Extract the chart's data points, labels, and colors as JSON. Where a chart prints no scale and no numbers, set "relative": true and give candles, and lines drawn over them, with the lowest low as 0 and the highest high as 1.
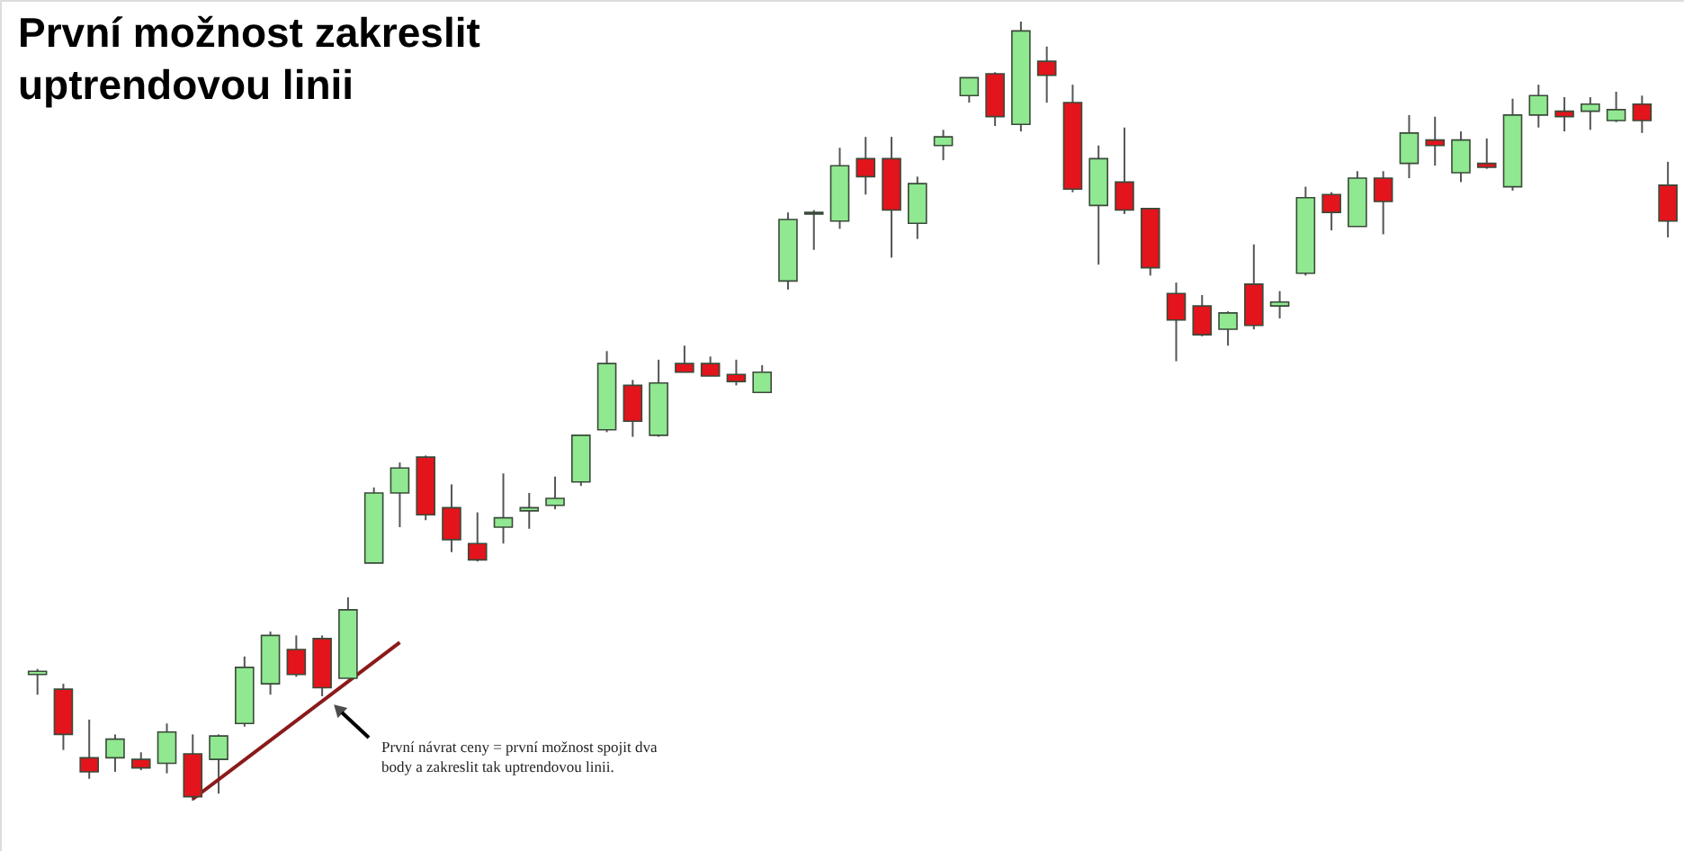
{
  "chart_data": {
    "type": "candlestick",
    "title": "První možnost zakreslit uptrendovou linii",
    "relative": true,
    "categories": [
      null,
      null,
      null,
      null,
      null,
      null,
      null,
      null,
      null,
      null,
      null,
      null,
      null,
      null,
      null,
      null,
      null,
      null,
      null,
      null,
      null,
      null,
      null,
      null,
      null,
      null,
      null,
      null,
      null,
      null,
      null,
      null,
      null,
      null,
      null,
      null,
      null,
      null,
      null,
      null,
      null,
      null,
      null,
      null,
      null,
      null,
      null,
      null,
      null,
      null,
      null,
      null,
      null,
      null,
      null,
      null,
      null,
      null,
      null,
      null,
      null,
      null,
      null,
      null
    ],
    "ohlc": [
      [
        0.162,
        0.169,
        0.136,
        0.166
      ],
      [
        0.143,
        0.15,
        0.065,
        0.085
      ],
      [
        0.055,
        0.104,
        0.028,
        0.037
      ],
      [
        0.055,
        0.085,
        0.037,
        0.079
      ],
      [
        0.053,
        0.062,
        0.039,
        0.042
      ],
      [
        0.048,
        0.099,
        0.035,
        0.088
      ],
      [
        0.06,
        0.085,
        0.0,
        0.005
      ],
      [
        0.053,
        0.085,
        0.009,
        0.083
      ],
      [
        0.099,
        0.185,
        0.095,
        0.171
      ],
      [
        0.15,
        0.217,
        0.136,
        0.212
      ],
      [
        0.194,
        0.212,
        0.159,
        0.162
      ],
      [
        0.208,
        0.212,
        0.134,
        0.145
      ],
      [
        0.157,
        0.261,
        0.157,
        0.245
      ],
      [
        0.305,
        0.402,
        0.305,
        0.395
      ],
      [
        0.395,
        0.434,
        0.351,
        0.427
      ],
      [
        0.441,
        0.443,
        0.36,
        0.367
      ],
      [
        0.376,
        0.406,
        0.319,
        0.335
      ],
      [
        0.33,
        0.37,
        0.307,
        0.309
      ],
      [
        0.351,
        0.42,
        0.33,
        0.363
      ],
      [
        0.372,
        0.395,
        0.349,
        0.376
      ],
      [
        0.379,
        0.416,
        0.374,
        0.388
      ],
      [
        0.409,
        0.469,
        0.404,
        0.469
      ],
      [
        0.476,
        0.577,
        0.473,
        0.561
      ],
      [
        0.533,
        0.54,
        0.467,
        0.487
      ],
      [
        0.469,
        0.566,
        0.467,
        0.536
      ],
      [
        0.561,
        0.584,
        0.55,
        0.55
      ],
      [
        0.561,
        0.57,
        0.545,
        0.545
      ],
      [
        0.547,
        0.566,
        0.533,
        0.538
      ],
      [
        0.524,
        0.559,
        0.524,
        0.55
      ],
      [
        0.667,
        0.755,
        0.656,
        0.746
      ],
      [
        0.753,
        0.758,
        0.707,
        0.755
      ],
      [
        0.744,
        0.838,
        0.734,
        0.815
      ],
      [
        0.824,
        0.852,
        0.778,
        0.801
      ],
      [
        0.824,
        0.852,
        0.697,
        0.758
      ],
      [
        0.741,
        0.801,
        0.721,
        0.792
      ],
      [
        0.841,
        0.861,
        0.822,
        0.852
      ],
      [
        0.905,
        0.928,
        0.896,
        0.928
      ],
      [
        0.933,
        0.935,
        0.866,
        0.878
      ],
      [
        0.868,
        1.0,
        0.859,
        0.988
      ],
      [
        0.949,
        0.968,
        0.896,
        0.931
      ],
      [
        0.896,
        0.919,
        0.781,
        0.785
      ],
      [
        0.764,
        0.841,
        0.688,
        0.824
      ],
      [
        0.794,
        0.864,
        0.753,
        0.758
      ],
      [
        0.76,
        0.76,
        0.674,
        0.684
      ],
      [
        0.651,
        0.665,
        0.564,
        0.617
      ],
      [
        0.635,
        0.649,
        0.596,
        0.598
      ],
      [
        0.605,
        0.628,
        0.584,
        0.626
      ],
      [
        0.663,
        0.714,
        0.605,
        0.61
      ],
      [
        0.635,
        0.654,
        0.619,
        0.64
      ],
      [
        0.677,
        0.788,
        0.674,
        0.774
      ],
      [
        0.778,
        0.781,
        0.732,
        0.755
      ],
      [
        0.737,
        0.808,
        0.737,
        0.799
      ],
      [
        0.799,
        0.808,
        0.727,
        0.769
      ],
      [
        0.818,
        0.88,
        0.799,
        0.857
      ],
      [
        0.848,
        0.878,
        0.815,
        0.841
      ],
      [
        0.806,
        0.859,
        0.794,
        0.848
      ],
      [
        0.818,
        0.85,
        0.811,
        0.813
      ],
      [
        0.788,
        0.901,
        0.783,
        0.88
      ],
      [
        0.88,
        0.919,
        0.864,
        0.905
      ],
      [
        0.885,
        0.903,
        0.859,
        0.878
      ],
      [
        0.885,
        0.903,
        0.861,
        0.894
      ],
      [
        0.873,
        0.91,
        0.871,
        0.887
      ],
      [
        0.894,
        0.905,
        0.857,
        0.873
      ],
      [
        0.79,
        0.82,
        0.723,
        0.744
      ]
    ],
    "colors": [
      "#90e890",
      "#e3141b",
      "#e3141b",
      "#90e890",
      "#e3141b",
      "#90e890",
      "#e3141b",
      "#90e890",
      "#90e890",
      "#90e890",
      "#e3141b",
      "#e3141b",
      "#90e890",
      "#90e890",
      "#90e890",
      "#e3141b",
      "#e3141b",
      "#e3141b",
      "#90e890",
      "#90e890",
      "#90e890",
      "#90e890",
      "#90e890",
      "#e3141b",
      "#90e890",
      "#e3141b",
      "#e3141b",
      "#e3141b",
      "#90e890",
      "#90e890",
      "#90e890",
      "#90e890",
      "#e3141b",
      "#e3141b",
      "#90e890",
      "#90e890",
      "#90e890",
      "#e3141b",
      "#90e890",
      "#e3141b",
      "#e3141b",
      "#90e890",
      "#e3141b",
      "#e3141b",
      "#e3141b",
      "#e3141b",
      "#90e890",
      "#e3141b",
      "#90e890",
      "#90e890",
      "#e3141b",
      "#90e890",
      "#e3141b",
      "#90e890",
      "#e3141b",
      "#90e890",
      "#e3141b",
      "#90e890",
      "#90e890",
      "#e3141b",
      "#90e890",
      "#90e890",
      "#e3141b",
      "#e3141b"
    ],
    "series": [
      {
        "type": "line",
        "color": "#8b1a1a",
        "values": [
          null,
          null,
          null,
          null,
          null,
          null,
          0.002,
          null,
          null,
          null,
          null,
          null,
          null,
          null,
          0.203,
          null,
          null,
          null,
          null,
          null,
          null,
          null,
          null,
          null,
          null,
          null,
          null,
          null,
          null,
          null,
          null,
          null,
          null,
          null,
          null,
          null,
          null,
          null,
          null,
          null,
          null,
          null,
          null,
          null,
          null,
          null,
          null,
          null,
          null,
          null,
          null,
          null,
          null,
          null,
          null,
          null,
          null,
          null,
          null,
          null,
          null,
          null,
          null,
          null
        ]
      }
    ],
    "annotations": [
      "První návrat ceny = první možnost spojit dva body a zakreslit tak uptrendovou linii."
    ]
  }
}
